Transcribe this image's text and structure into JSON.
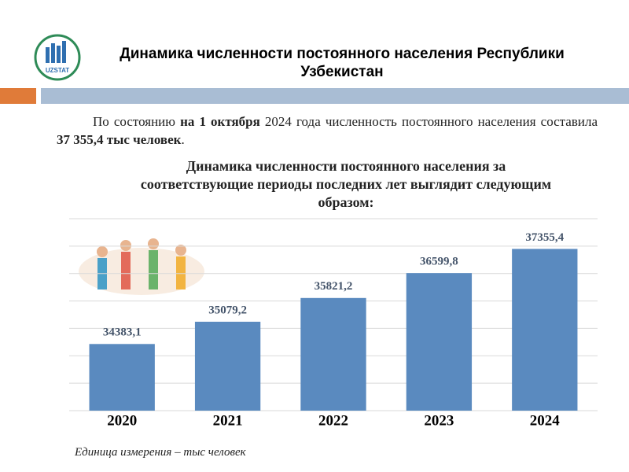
{
  "logo": "UZSTAT",
  "header": {
    "title": "Динамика численности постоянного населения Республики Узбекистан"
  },
  "intro": {
    "segments": [
      {
        "text": "По состоянию ",
        "bold": false
      },
      {
        "text": "на 1 октября",
        "bold": true
      },
      {
        "text": " 2024 года численность постоянного населения составила ",
        "bold": false
      },
      {
        "text": "37 355,4 тыс человек",
        "bold": true
      },
      {
        "text": ".",
        "bold": false
      }
    ]
  },
  "chart_data": {
    "type": "bar",
    "title": "Динамика численности постоянного населения за соответствующие периоды последних лет выглядит следующим образом:",
    "categories": [
      "2020",
      "2021",
      "2022",
      "2023",
      "2024"
    ],
    "values": [
      34383.1,
      35079.2,
      35821.2,
      36599.8,
      37355.4
    ],
    "value_labels": [
      "34383,1",
      "35079,2",
      "35821,2",
      "36599,8",
      "37355,4"
    ],
    "color": "#5a8abf",
    "ylim": [
      32300,
      38300
    ],
    "grid": true
  },
  "footnote": "Единица измерения – тыс человек"
}
